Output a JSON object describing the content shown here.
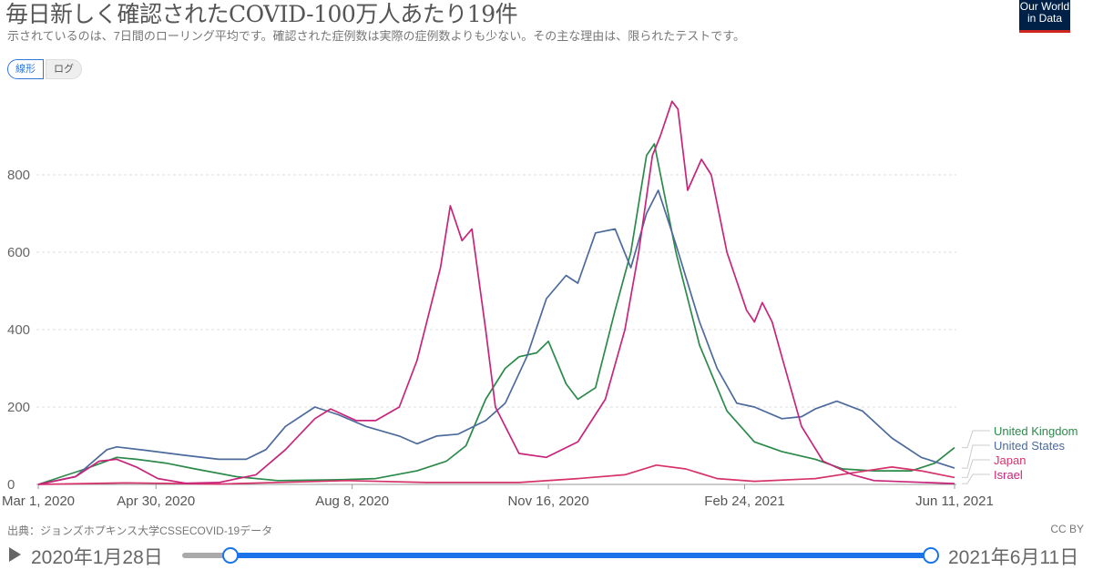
{
  "header": {
    "title": "毎日新しく確認されたCOVID-100万人あたり19件",
    "subtitle": "示されているのは、7日間のローリング平均です。確認された症例数は実際の症例数よりも少ない。その主な理由は、限られたテストです。",
    "logo": "Our World in Data"
  },
  "controls": {
    "linear": "線形",
    "log": "ログ"
  },
  "footer": {
    "source": "出典：ジョンズホプキンス大学CSSECOVID-19データ",
    "license": "CC BY"
  },
  "timeline": {
    "start": "2020年1月28日",
    "end": "2021年6月11日"
  },
  "chart_data": {
    "type": "line",
    "ylim": [
      0,
      1000
    ],
    "grid": true,
    "legend": "right",
    "yticks": [
      0,
      200,
      400,
      600,
      800
    ],
    "xticks": [
      {
        "date": "2020-03-01",
        "label": "Mar 1, 2020"
      },
      {
        "date": "2020-04-30",
        "label": "Apr 30, 2020"
      },
      {
        "date": "2020-08-08",
        "label": "Aug 8, 2020"
      },
      {
        "date": "2020-11-16",
        "label": "Nov 16, 2020"
      },
      {
        "date": "2021-02-24",
        "label": "Feb 24, 2021"
      },
      {
        "date": "2021-06-11",
        "label": "Jun 11, 2021"
      }
    ],
    "series": [
      {
        "name": "United Kingdom",
        "color": "#2b8a4a",
        "points": [
          [
            "2020-03-01",
            0
          ],
          [
            "2020-03-25",
            40
          ],
          [
            "2020-04-10",
            70
          ],
          [
            "2020-04-20",
            65
          ],
          [
            "2020-05-05",
            55
          ],
          [
            "2020-05-20",
            40
          ],
          [
            "2020-06-10",
            20
          ],
          [
            "2020-07-01",
            10
          ],
          [
            "2020-08-01",
            12
          ],
          [
            "2020-08-20",
            15
          ],
          [
            "2020-09-10",
            35
          ],
          [
            "2020-09-25",
            60
          ],
          [
            "2020-10-05",
            100
          ],
          [
            "2020-10-15",
            220
          ],
          [
            "2020-10-25",
            300
          ],
          [
            "2020-11-01",
            330
          ],
          [
            "2020-11-10",
            340
          ],
          [
            "2020-11-16",
            370
          ],
          [
            "2020-11-25",
            260
          ],
          [
            "2020-12-01",
            220
          ],
          [
            "2020-12-10",
            250
          ],
          [
            "2020-12-20",
            450
          ],
          [
            "2020-12-28",
            600
          ],
          [
            "2021-01-05",
            850
          ],
          [
            "2021-01-09",
            880
          ],
          [
            "2021-01-20",
            600
          ],
          [
            "2021-02-01",
            360
          ],
          [
            "2021-02-15",
            190
          ],
          [
            "2021-03-01",
            110
          ],
          [
            "2021-03-15",
            85
          ],
          [
            "2021-04-01",
            65
          ],
          [
            "2021-04-15",
            40
          ],
          [
            "2021-05-01",
            35
          ],
          [
            "2021-05-20",
            35
          ],
          [
            "2021-06-01",
            55
          ],
          [
            "2021-06-11",
            95
          ]
        ]
      },
      {
        "name": "United States",
        "color": "#4c6a9c",
        "points": [
          [
            "2020-03-01",
            0
          ],
          [
            "2020-03-20",
            20
          ],
          [
            "2020-04-05",
            90
          ],
          [
            "2020-04-10",
            97
          ],
          [
            "2020-04-25",
            88
          ],
          [
            "2020-05-15",
            75
          ],
          [
            "2020-06-01",
            65
          ],
          [
            "2020-06-15",
            65
          ],
          [
            "2020-06-25",
            90
          ],
          [
            "2020-07-05",
            150
          ],
          [
            "2020-07-20",
            200
          ],
          [
            "2020-08-01",
            180
          ],
          [
            "2020-08-15",
            150
          ],
          [
            "2020-09-01",
            125
          ],
          [
            "2020-09-10",
            105
          ],
          [
            "2020-09-20",
            125
          ],
          [
            "2020-10-01",
            130
          ],
          [
            "2020-10-15",
            165
          ],
          [
            "2020-10-25",
            210
          ],
          [
            "2020-11-05",
            330
          ],
          [
            "2020-11-15",
            480
          ],
          [
            "2020-11-25",
            540
          ],
          [
            "2020-12-01",
            520
          ],
          [
            "2020-12-10",
            650
          ],
          [
            "2020-12-20",
            660
          ],
          [
            "2020-12-28",
            560
          ],
          [
            "2021-01-05",
            700
          ],
          [
            "2021-01-11",
            760
          ],
          [
            "2021-01-20",
            620
          ],
          [
            "2021-02-01",
            420
          ],
          [
            "2021-02-10",
            300
          ],
          [
            "2021-02-20",
            210
          ],
          [
            "2021-03-01",
            200
          ],
          [
            "2021-03-15",
            170
          ],
          [
            "2021-03-25",
            175
          ],
          [
            "2021-04-01",
            195
          ],
          [
            "2021-04-12",
            215
          ],
          [
            "2021-04-25",
            190
          ],
          [
            "2021-05-10",
            120
          ],
          [
            "2021-05-25",
            70
          ],
          [
            "2021-06-11",
            42
          ]
        ]
      },
      {
        "name": "Japan",
        "color": "#d6336c",
        "points": [
          [
            "2020-03-01",
            0
          ],
          [
            "2020-04-15",
            4
          ],
          [
            "2020-06-01",
            1
          ],
          [
            "2020-08-05",
            10
          ],
          [
            "2020-09-15",
            5
          ],
          [
            "2020-11-01",
            5
          ],
          [
            "2020-12-01",
            15
          ],
          [
            "2020-12-25",
            25
          ],
          [
            "2021-01-10",
            50
          ],
          [
            "2021-01-25",
            40
          ],
          [
            "2021-02-10",
            15
          ],
          [
            "2021-03-01",
            8
          ],
          [
            "2021-04-01",
            15
          ],
          [
            "2021-04-20",
            30
          ],
          [
            "2021-05-10",
            45
          ],
          [
            "2021-05-25",
            35
          ],
          [
            "2021-06-11",
            18
          ]
        ]
      },
      {
        "name": "Israel",
        "color": "#c8247a",
        "points": [
          [
            "2020-03-01",
            0
          ],
          [
            "2020-03-20",
            20
          ],
          [
            "2020-04-01",
            60
          ],
          [
            "2020-04-10",
            65
          ],
          [
            "2020-04-20",
            45
          ],
          [
            "2020-05-01",
            15
          ],
          [
            "2020-05-15",
            3
          ],
          [
            "2020-06-01",
            5
          ],
          [
            "2020-06-20",
            25
          ],
          [
            "2020-07-05",
            90
          ],
          [
            "2020-07-20",
            170
          ],
          [
            "2020-07-28",
            195
          ],
          [
            "2020-08-10",
            165
          ],
          [
            "2020-08-20",
            165
          ],
          [
            "2020-09-01",
            200
          ],
          [
            "2020-09-10",
            320
          ],
          [
            "2020-09-22",
            560
          ],
          [
            "2020-09-27",
            720
          ],
          [
            "2020-10-03",
            630
          ],
          [
            "2020-10-08",
            660
          ],
          [
            "2020-10-15",
            400
          ],
          [
            "2020-10-20",
            200
          ],
          [
            "2020-11-01",
            80
          ],
          [
            "2020-11-15",
            70
          ],
          [
            "2020-12-01",
            110
          ],
          [
            "2020-12-15",
            220
          ],
          [
            "2020-12-25",
            400
          ],
          [
            "2021-01-01",
            600
          ],
          [
            "2021-01-08",
            850
          ],
          [
            "2021-01-12",
            900
          ],
          [
            "2021-01-18",
            990
          ],
          [
            "2021-01-21",
            970
          ],
          [
            "2021-01-26",
            760
          ],
          [
            "2021-02-02",
            840
          ],
          [
            "2021-02-07",
            800
          ],
          [
            "2021-02-15",
            600
          ],
          [
            "2021-02-25",
            450
          ],
          [
            "2021-03-01",
            420
          ],
          [
            "2021-03-05",
            470
          ],
          [
            "2021-03-10",
            420
          ],
          [
            "2021-03-15",
            330
          ],
          [
            "2021-03-25",
            150
          ],
          [
            "2021-04-05",
            60
          ],
          [
            "2021-04-20",
            25
          ],
          [
            "2021-05-01",
            10
          ],
          [
            "2021-06-11",
            2
          ]
        ]
      }
    ]
  }
}
